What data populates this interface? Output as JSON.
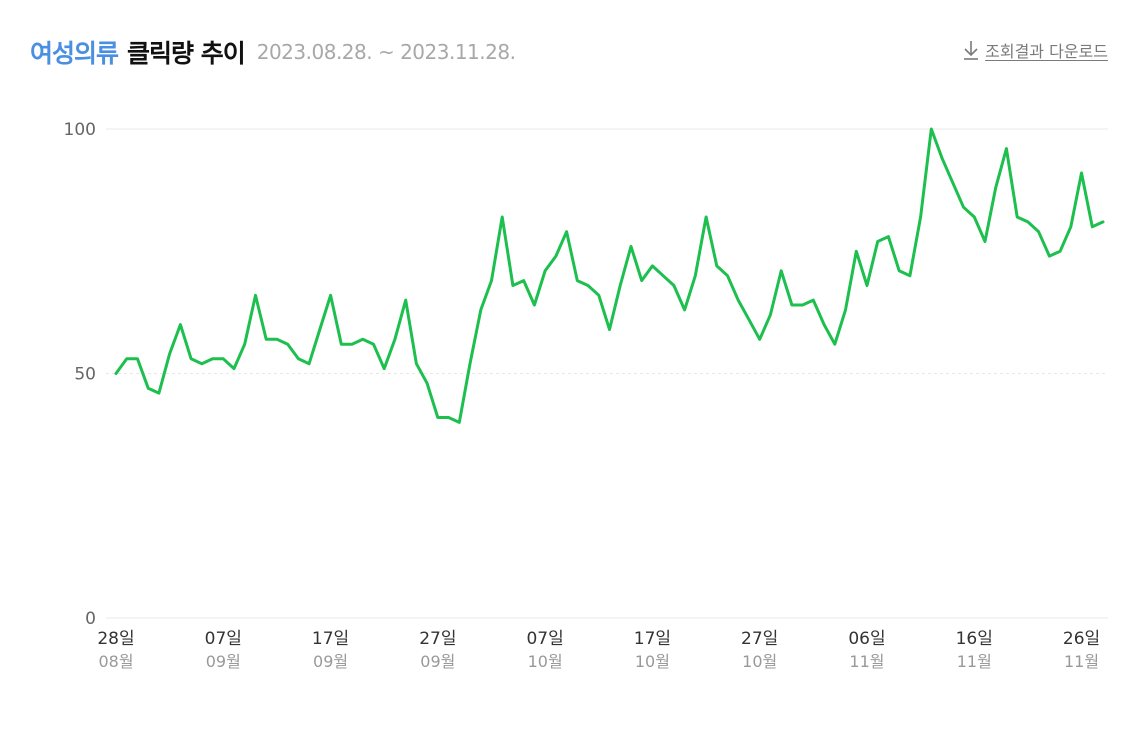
{
  "header": {
    "keyword": "여성의류",
    "title": "클릭량 추이",
    "period": "2023.08.28. ~ 2023.11.28.",
    "download_label": "조회결과 다운로드",
    "download_icon": "download-arrow-icon"
  },
  "colors": {
    "keyword": "#4a90e2",
    "line": "#1dbf4e",
    "grid": "#e8e8e8"
  },
  "chart_data": {
    "type": "line",
    "title": "클릭량 추이",
    "xlabel": "",
    "ylabel": "",
    "ylim": [
      0,
      100
    ],
    "yticks": [
      "0",
      "50",
      "100"
    ],
    "x_start": "2023-08-28",
    "x_end": "2023-11-28",
    "xtick_labels": [
      {
        "day": "28일",
        "month": "08월"
      },
      {
        "day": "07일",
        "month": "09월"
      },
      {
        "day": "17일",
        "month": "09월"
      },
      {
        "day": "27일",
        "month": "09월"
      },
      {
        "day": "07일",
        "month": "10월"
      },
      {
        "day": "17일",
        "month": "10월"
      },
      {
        "day": "27일",
        "month": "10월"
      },
      {
        "day": "06일",
        "month": "11월"
      },
      {
        "day": "16일",
        "month": "11월"
      },
      {
        "day": "26일",
        "month": "11월"
      }
    ],
    "grid": true,
    "legend": "none",
    "series": [
      {
        "values": [
          50,
          53,
          53,
          47,
          46,
          54,
          60,
          53,
          52,
          53,
          53,
          51,
          56,
          66,
          57,
          57,
          56,
          53,
          52,
          59,
          66,
          56,
          56,
          57,
          56,
          51,
          57,
          65,
          52,
          48,
          41,
          41,
          40,
          52,
          63,
          69,
          82,
          68,
          69,
          64,
          71,
          74,
          79,
          69,
          68,
          66,
          59,
          68,
          76,
          69,
          72,
          70,
          68,
          63,
          70,
          82,
          72,
          70,
          65,
          61,
          57,
          62,
          71,
          64,
          64,
          65,
          60,
          56,
          63,
          75,
          68,
          77,
          78,
          71,
          70,
          82,
          100,
          94,
          89,
          84,
          82,
          77,
          88,
          96,
          82,
          81,
          79,
          74,
          75,
          80,
          91,
          80,
          81
        ]
      }
    ]
  }
}
